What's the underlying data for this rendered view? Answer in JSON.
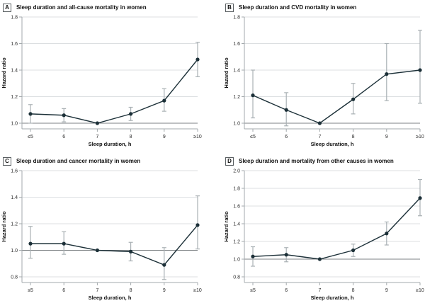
{
  "colors": {
    "series": "#1c3038",
    "error_bar": "#a9b0b4",
    "grid": "#dcdfe1",
    "reference": "#7c8184",
    "axis": "#a3a9ac",
    "tick_label": "#2b2b2b",
    "title": "#111111"
  },
  "chart_data": [
    {
      "type": "line",
      "panel_label": "A",
      "title": "Sleep duration and all-cause mortality in women",
      "xlabel": "Sleep duration, h",
      "ylabel": "Hazard ratio",
      "categories": [
        "≤5",
        "6",
        "7",
        "8",
        "9",
        "≥10"
      ],
      "yticks": [
        1.0,
        1.2,
        1.4,
        1.6,
        1.8
      ],
      "ylim": [
        0.96,
        1.8
      ],
      "grid": true,
      "legend": false,
      "reference_line": 1.0,
      "series": [
        {
          "name": "Hazard ratio (95% CI)",
          "values": [
            1.07,
            1.06,
            1.0,
            1.07,
            1.17,
            1.48
          ],
          "ci_low": [
            1.0,
            1.01,
            null,
            1.02,
            1.09,
            1.35
          ],
          "ci_high": [
            1.14,
            1.11,
            null,
            1.12,
            1.26,
            1.61
          ]
        }
      ]
    },
    {
      "type": "line",
      "panel_label": "B",
      "title": "Sleep duration and CVD mortality in women",
      "xlabel": "Sleep duration, h",
      "ylabel": "Hazard ratio",
      "categories": [
        "≤5",
        "6",
        "7",
        "8",
        "9",
        "≥10"
      ],
      "yticks": [
        1.0,
        1.2,
        1.4,
        1.6,
        1.8
      ],
      "ylim": [
        0.96,
        1.8
      ],
      "grid": true,
      "legend": false,
      "reference_line": 1.0,
      "series": [
        {
          "name": "Hazard ratio (95% CI)",
          "values": [
            1.21,
            1.1,
            1.0,
            1.18,
            1.37,
            1.4
          ],
          "ci_low": [
            1.04,
            0.98,
            null,
            1.07,
            1.17,
            1.15
          ],
          "ci_high": [
            1.4,
            1.23,
            null,
            1.3,
            1.6,
            1.7
          ]
        }
      ]
    },
    {
      "type": "line",
      "panel_label": "C",
      "title": "Sleep duration and cancer mortality in women",
      "xlabel": "Sleep duration, h",
      "ylabel": "Hazard ratio",
      "categories": [
        "≤5",
        "6",
        "7",
        "8",
        "9",
        "≥10"
      ],
      "yticks": [
        0.8,
        1.0,
        1.2,
        1.4,
        1.6
      ],
      "ylim": [
        0.76,
        1.6
      ],
      "grid": true,
      "legend": false,
      "reference_line": 1.0,
      "series": [
        {
          "name": "Hazard ratio (95% CI)",
          "values": [
            1.05,
            1.05,
            1.0,
            0.99,
            0.89,
            1.19
          ],
          "ci_low": [
            0.94,
            0.97,
            null,
            0.92,
            0.78,
            1.01
          ],
          "ci_high": [
            1.18,
            1.14,
            null,
            1.06,
            1.02,
            1.41
          ]
        }
      ]
    },
    {
      "type": "line",
      "panel_label": "D",
      "title": "Sleep duration and mortality from other causes in women",
      "xlabel": "Sleep duration, h",
      "ylabel": "Hazard ratio",
      "categories": [
        "≤5",
        "6",
        "7",
        "8",
        "9",
        "≥10"
      ],
      "yticks": [
        0.8,
        1.0,
        1.2,
        1.4,
        1.6,
        1.8,
        2.0
      ],
      "ylim": [
        0.76,
        2.0
      ],
      "grid": true,
      "legend": false,
      "reference_line": 1.0,
      "series": [
        {
          "name": "Hazard ratio (95% CI)",
          "values": [
            1.03,
            1.05,
            1.0,
            1.1,
            1.29,
            1.69
          ],
          "ci_low": [
            0.92,
            0.97,
            null,
            1.03,
            1.16,
            1.49
          ],
          "ci_high": [
            1.14,
            1.13,
            null,
            1.17,
            1.42,
            1.9
          ]
        }
      ]
    }
  ]
}
